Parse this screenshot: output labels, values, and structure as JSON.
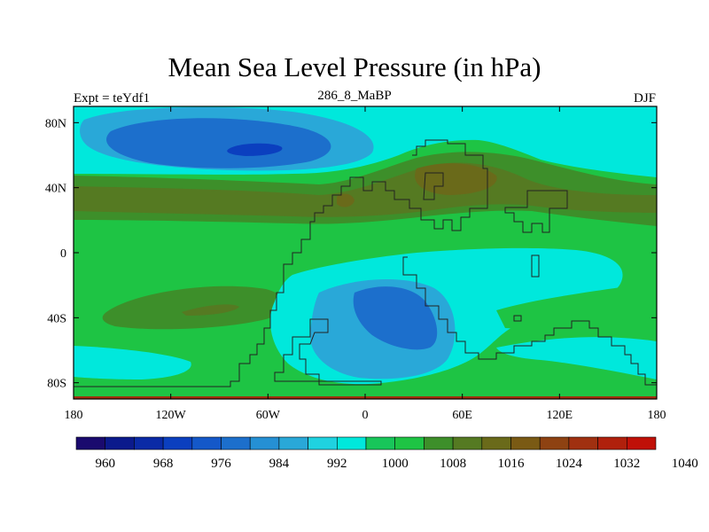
{
  "chart_data": {
    "type": "heatmap",
    "title": "Mean Sea Level Pressure (in hPa)",
    "left_label": "Expt = teYdf1",
    "center_label": "286_8_MaBP",
    "right_label": "DJF",
    "x_ticks": [
      "180",
      "120W",
      "60W",
      "0",
      "60E",
      "120E",
      "180"
    ],
    "x_tick_values": [
      -180,
      -120,
      -60,
      0,
      60,
      120,
      180
    ],
    "y_ticks": [
      "80N",
      "40N",
      "0",
      "40S",
      "80S"
    ],
    "y_tick_values": [
      80,
      40,
      0,
      -40,
      -80
    ],
    "xlim": [
      -180,
      180
    ],
    "ylim": [
      -90,
      90
    ],
    "colorbar": {
      "levels": [
        960,
        964,
        968,
        972,
        976,
        980,
        984,
        988,
        992,
        996,
        1000,
        1004,
        1008,
        1012,
        1016,
        1020,
        1024,
        1028,
        1032,
        1036,
        1040
      ],
      "labels": [
        "960",
        "968",
        "976",
        "984",
        "992",
        "1000",
        "1008",
        "1016",
        "1024",
        "1032",
        "1040"
      ],
      "colors": [
        "#1a0a6e",
        "#0b1a8c",
        "#0a2aa6",
        "#0b3fbf",
        "#1458c9",
        "#1c6fcc",
        "#2590d4",
        "#29a8d8",
        "#1fd2e0",
        "#00e8dc",
        "#18c65a",
        "#1ec444",
        "#3d8f2a",
        "#557a22",
        "#6a6a1a",
        "#7a5a14",
        "#8e4212",
        "#a03010",
        "#b0200c",
        "#c01008"
      ]
    }
  }
}
